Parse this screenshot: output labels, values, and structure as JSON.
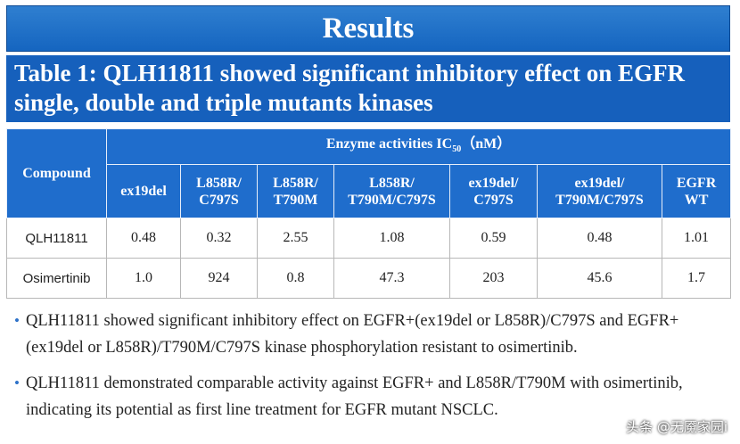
{
  "banner": {
    "title": "Results"
  },
  "subtitle": {
    "line1": "Table 1: QLH11811 showed significant inhibitory effect on EGFR",
    "line2": "single, double and triple mutants kinases"
  },
  "table": {
    "compound_header": "Compound",
    "group_header": {
      "prefix": "Enzyme activities IC",
      "subscript": "50",
      "suffix": "（nM）"
    },
    "columns": [
      {
        "line1": "ex19del",
        "line2": ""
      },
      {
        "line1": "L858R/",
        "line2": "C797S"
      },
      {
        "line1": "L858R/",
        "line2": "T790M"
      },
      {
        "line1": "L858R/",
        "line2": "T790M/C797S"
      },
      {
        "line1": "ex19del/",
        "line2": "C797S"
      },
      {
        "line1": "ex19del/",
        "line2": "T790M/C797S"
      },
      {
        "line1": "EGFR",
        "line2": "WT"
      }
    ],
    "rows": [
      {
        "compound": "QLH11811",
        "values": [
          "0.48",
          "0.32",
          "2.55",
          "1.08",
          "0.59",
          "0.48",
          "1.01"
        ]
      },
      {
        "compound": "Osimertinib",
        "values": [
          "1.0",
          "924",
          "0.8",
          "47.3",
          "203",
          "45.6",
          "1.7"
        ]
      }
    ]
  },
  "bullets": [
    {
      "text": "QLH11811 showed significant inhibitory effect on EGFR+(ex19del or L858R)/C797S and EGFR+(ex19del or L858R)/T790M/C797S kinase phosphorylation resistant to osimertinib."
    },
    {
      "text": "QLH11811 demonstrated comparable activity against EGFR+ and L858R/T790M with osimertinib, indicating its potential as first line treatment for EGFR mutant NSCLC."
    }
  ],
  "watermark": "头条 @无魇家园i",
  "colors": {
    "banner": "#1565c0",
    "header_cell": "#1f6dcc",
    "bullet": "#2e72c9"
  }
}
